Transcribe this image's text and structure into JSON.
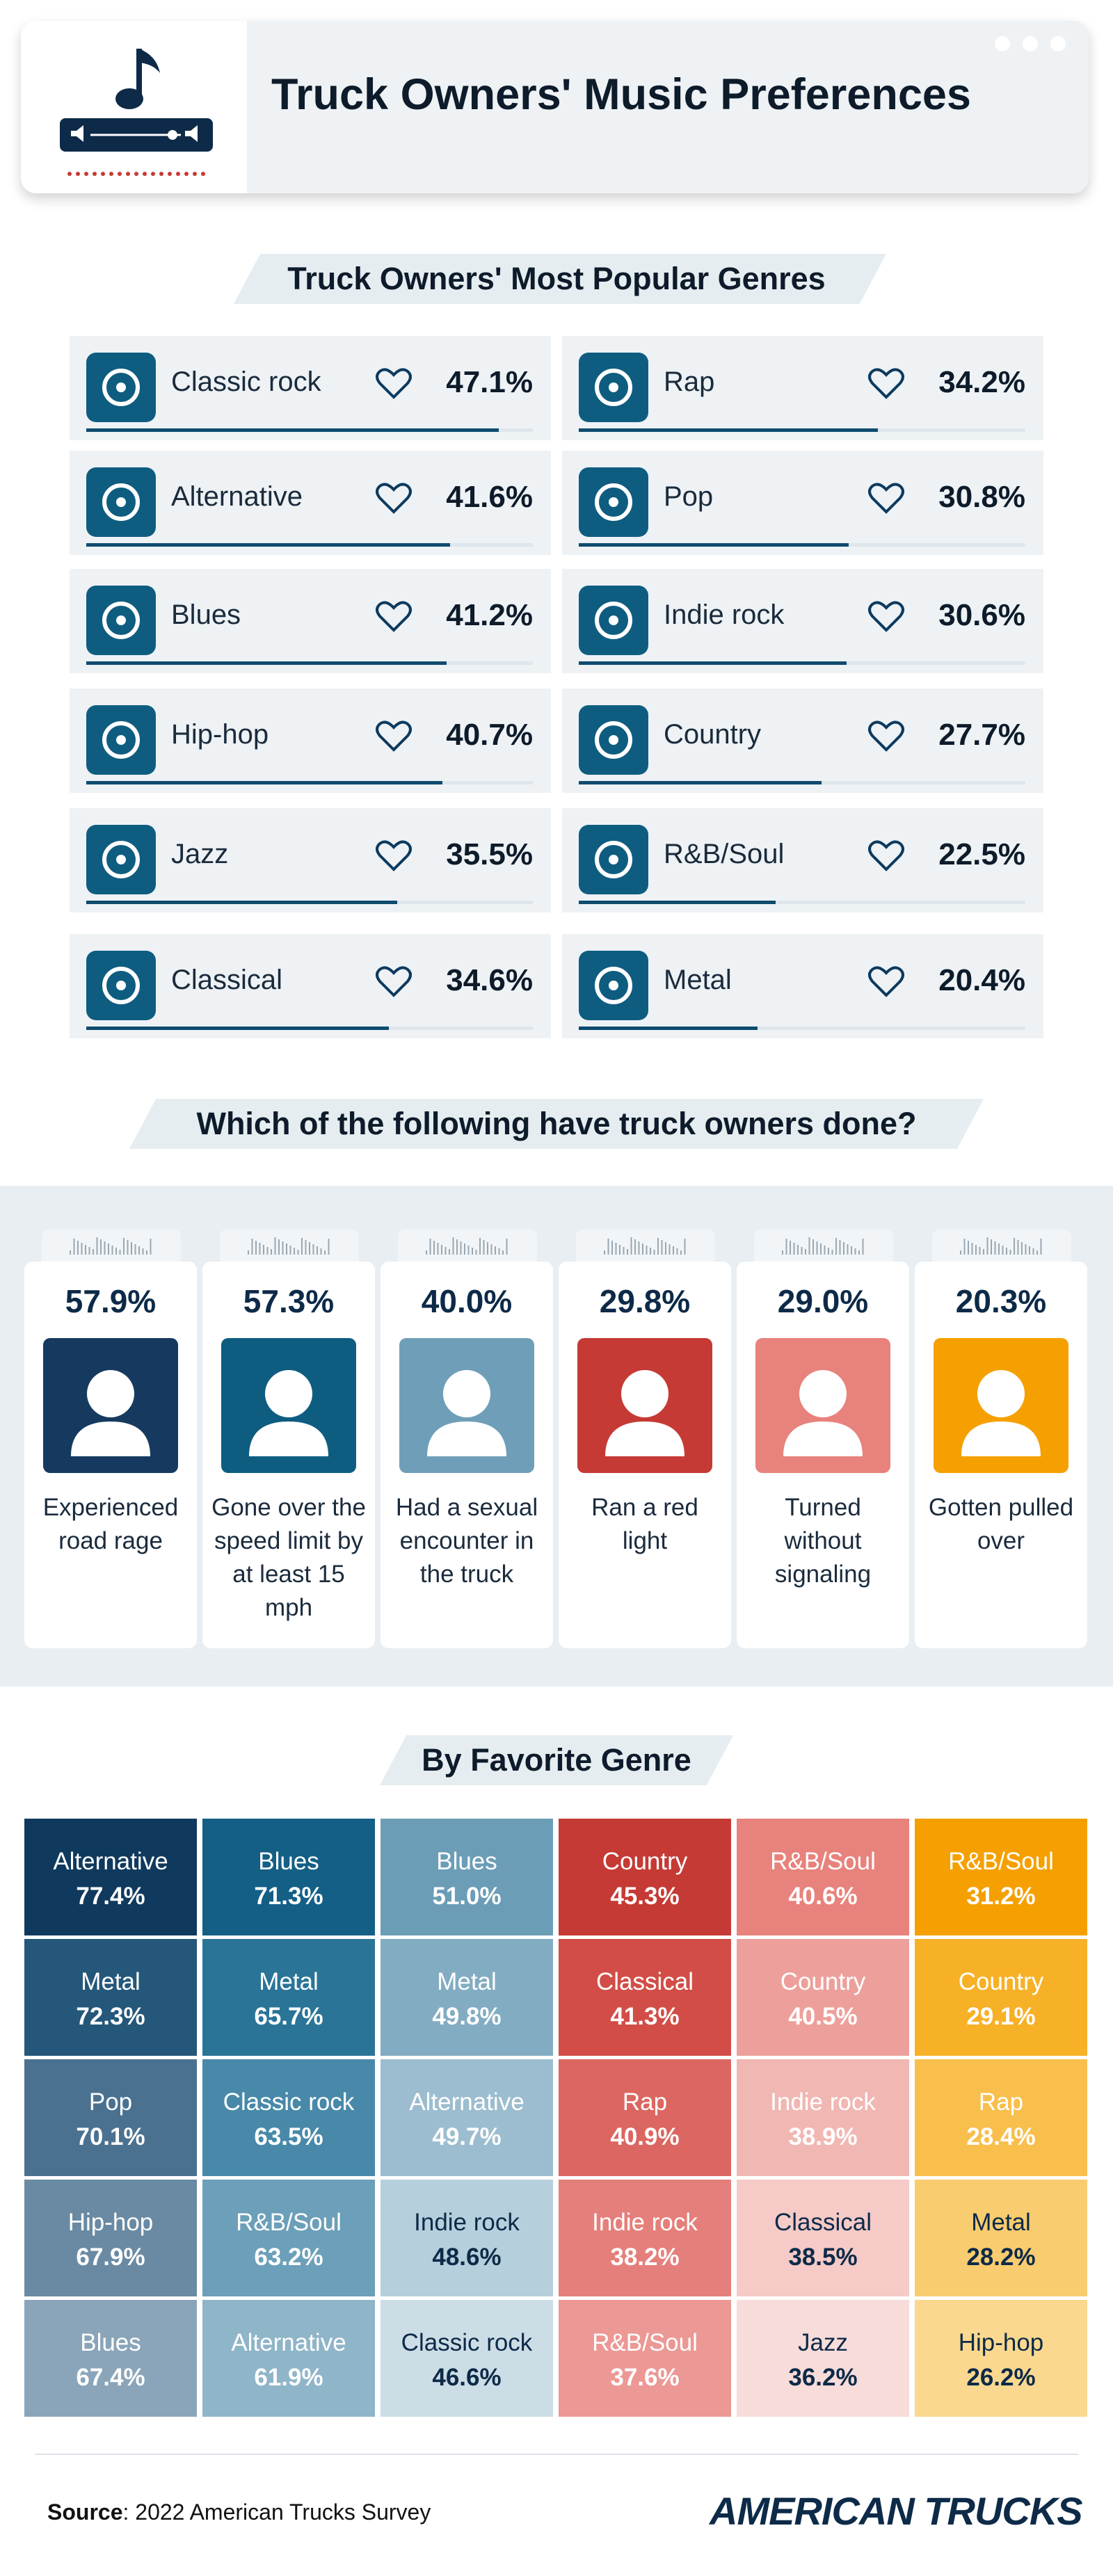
{
  "header": {
    "title": "Truck Owners' Music Preferences"
  },
  "sections": {
    "genres_title": "Truck Owners' Most Popular Genres",
    "activities_title": "Which of the following have truck owners done?",
    "by_genre_title": "By Favorite Genre"
  },
  "genres": [
    {
      "name": "Classic rock",
      "pct": "47.1%",
      "icon": "rock-hand-icon"
    },
    {
      "name": "Rap",
      "pct": "34.2%",
      "icon": "cassette-icon"
    },
    {
      "name": "Alternative",
      "pct": "41.6%",
      "icon": "microphone-icon"
    },
    {
      "name": "Pop",
      "pct": "30.8%",
      "icon": "handheld-mic-icon"
    },
    {
      "name": "Blues",
      "pct": "41.2%",
      "icon": "trumpet-icon"
    },
    {
      "name": "Indie rock",
      "pct": "30.6%",
      "icon": "electric-guitar-icon"
    },
    {
      "name": "Hip-hop",
      "pct": "40.7%",
      "icon": "boombox-icon"
    },
    {
      "name": "Country",
      "pct": "27.7%",
      "icon": "acoustic-guitar-icon"
    },
    {
      "name": "Jazz",
      "pct": "35.5%",
      "icon": "saxophone-icon"
    },
    {
      "name": "R&B/Soul",
      "pct": "22.5%",
      "icon": "vinyl-icon"
    },
    {
      "name": "Classical",
      "pct": "34.6%",
      "icon": "piano-keys-icon"
    },
    {
      "name": "Metal",
      "pct": "20.4%",
      "icon": "flying-v-guitar-icon"
    }
  ],
  "activities": [
    {
      "pct": "57.9%",
      "label": "Experienced road rage",
      "color": "#163a5f",
      "icon": "angry-driver-icon"
    },
    {
      "pct": "57.3%",
      "label": "Gone over the speed limit by at least 15 mph",
      "color": "#0e5d81",
      "icon": "speedometer-icon"
    },
    {
      "pct": "40.0%",
      "label": "Had a sexual encounter in the truck",
      "color": "#6f9fb8",
      "icon": "truck-heart-icon"
    },
    {
      "pct": "29.8%",
      "label": "Ran a red light",
      "color": "#c53a34",
      "icon": "car-traffic-light-icon"
    },
    {
      "pct": "29.0%",
      "label": "Turned without signaling",
      "color": "#e8827c",
      "icon": "turn-arrows-icon"
    },
    {
      "pct": "20.3%",
      "label": "Gotten pulled over",
      "color": "#f5a000",
      "icon": "police-officer-icon"
    }
  ],
  "chart_data": {
    "type": "table",
    "title": "By Favorite Genre",
    "columns": [
      [
        {
          "genre": "Alternative",
          "value": "77.4%"
        },
        {
          "genre": "Metal",
          "value": "72.3%"
        },
        {
          "genre": "Pop",
          "value": "70.1%"
        },
        {
          "genre": "Hip-hop",
          "value": "67.9%"
        },
        {
          "genre": "Blues",
          "value": "67.4%"
        }
      ],
      [
        {
          "genre": "Blues",
          "value": "71.3%"
        },
        {
          "genre": "Metal",
          "value": "65.7%"
        },
        {
          "genre": "Classic rock",
          "value": "63.5%"
        },
        {
          "genre": "R&B/Soul",
          "value": "63.2%"
        },
        {
          "genre": "Alternative",
          "value": "61.9%"
        }
      ],
      [
        {
          "genre": "Blues",
          "value": "51.0%"
        },
        {
          "genre": "Metal",
          "value": "49.8%"
        },
        {
          "genre": "Alternative",
          "value": "49.7%"
        },
        {
          "genre": "Indie rock",
          "value": "48.6%"
        },
        {
          "genre": "Classic rock",
          "value": "46.6%"
        }
      ],
      [
        {
          "genre": "Country",
          "value": "45.3%"
        },
        {
          "genre": "Classical",
          "value": "41.3%"
        },
        {
          "genre": "Rap",
          "value": "40.9%"
        },
        {
          "genre": "Indie rock",
          "value": "38.2%"
        },
        {
          "genre": "R&B/Soul",
          "value": "37.6%"
        }
      ],
      [
        {
          "genre": "R&B/Soul",
          "value": "40.6%"
        },
        {
          "genre": "Country",
          "value": "40.5%"
        },
        {
          "genre": "Indie rock",
          "value": "38.9%"
        },
        {
          "genre": "Classical",
          "value": "38.5%"
        },
        {
          "genre": "Jazz",
          "value": "36.2%"
        }
      ],
      [
        {
          "genre": "R&B/Soul",
          "value": "31.2%"
        },
        {
          "genre": "Country",
          "value": "29.1%"
        },
        {
          "genre": "Rap",
          "value": "28.4%"
        },
        {
          "genre": "Metal",
          "value": "28.2%"
        },
        {
          "genre": "Hip-hop",
          "value": "26.2%"
        }
      ]
    ],
    "colors": [
      [
        "#0f3a5e",
        "#24577a",
        "#4a7190",
        "#6a8aa3",
        "#8aa5b9"
      ],
      [
        "#135f86",
        "#2a7497",
        "#4889a9",
        "#6c9fb9",
        "#8fb5c9"
      ],
      [
        "#6b9db7",
        "#82acc2",
        "#9cbdcf",
        "#b6cfdc",
        "#ccdde6"
      ],
      [
        "#c53a34",
        "#d24d47",
        "#dc6661",
        "#e57f7b",
        "#ec9895"
      ],
      [
        "#e8827c",
        "#eda09b",
        "#f1b7b3",
        "#f5cac7",
        "#f8dcda"
      ],
      [
        "#f5a000",
        "#f7b126",
        "#f8bf4c",
        "#f9cc6f",
        "#fad88f"
      ]
    ]
  },
  "footer": {
    "source_label": "Source",
    "source_text": ": 2022 American Trucks Survey",
    "brand": "AMERICAN TRUCKS"
  }
}
